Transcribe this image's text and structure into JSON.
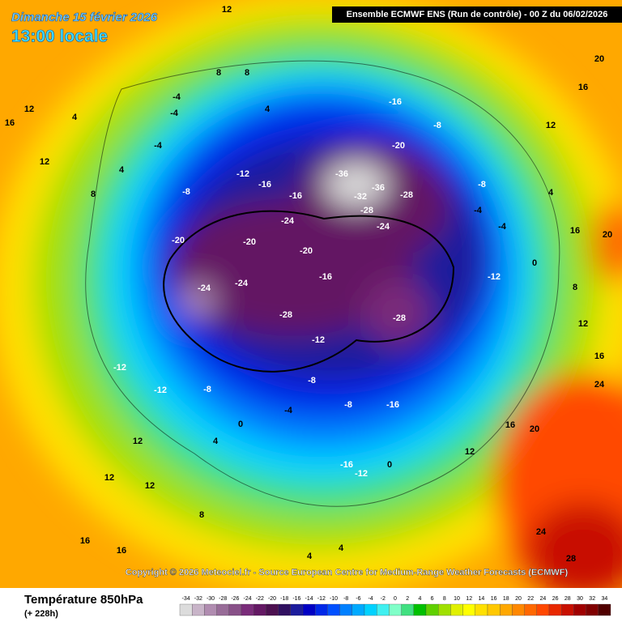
{
  "header": {
    "date": "Dimanche 15 février 2026",
    "time": "13:00 locale",
    "run": "Ensemble ECMWF ENS  (Run de contrôle)  -  00 Z du 06/02/2026"
  },
  "copyright": "Copyright © 2026 Meteociel.fr - Source European Centre for Medium-Range Weather Forecasts (ECMWF)",
  "footer": {
    "title": "Température 850hPa",
    "lead": "(+ 228h)"
  },
  "legend": {
    "ticks": [
      -34,
      -32,
      -30,
      -28,
      -26,
      -24,
      -22,
      -20,
      -18,
      -16,
      -14,
      -12,
      -10,
      -8,
      -6,
      -4,
      -2,
      0,
      2,
      4,
      6,
      8,
      10,
      12,
      14,
      16,
      18,
      20,
      22,
      24,
      26,
      28,
      30,
      32,
      34
    ],
    "colors": [
      "#dcdcdc",
      "#c8b4c8",
      "#b08cb0",
      "#986c98",
      "#885088",
      "#7a2c7a",
      "#641864",
      "#4c1050",
      "#301060",
      "#1c1c9c",
      "#0000c4",
      "#0028e8",
      "#0050ff",
      "#0080ff",
      "#00aaff",
      "#00d2ff",
      "#40f0f0",
      "#80ffc8",
      "#40e080",
      "#00c000",
      "#60d000",
      "#a0e000",
      "#e0f000",
      "#ffff00",
      "#ffe000",
      "#ffc800",
      "#ffa800",
      "#ff8800",
      "#ff6800",
      "#ff4800",
      "#e82800",
      "#c81000",
      "#a00000",
      "#800000",
      "#500000"
    ]
  },
  "map_labels": [
    12,
    8,
    8,
    4,
    -4,
    -4,
    -4,
    4,
    12,
    16,
    12,
    4,
    8,
    -8,
    -12,
    -16,
    -16,
    -16,
    -8,
    -20,
    -36,
    -32,
    -36,
    -28,
    -28,
    -24,
    -24,
    -20,
    -20,
    -20,
    -24,
    -24,
    -28,
    -28,
    -16,
    -12,
    -12,
    -12,
    -8,
    -8,
    -8,
    -16,
    -4,
    0,
    -16,
    -12,
    0,
    4,
    12,
    12,
    12,
    16,
    16,
    8,
    4,
    4,
    12,
    16,
    20,
    24,
    28,
    24,
    20,
    16,
    12,
    4,
    -8,
    -4,
    -4,
    0,
    8,
    12,
    16,
    20,
    16,
    -12
  ]
}
